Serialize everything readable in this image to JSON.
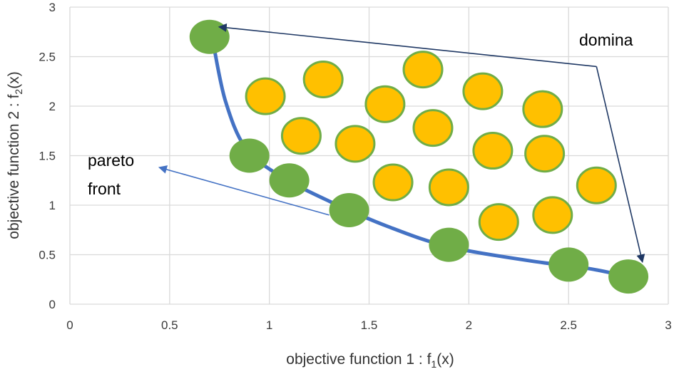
{
  "chart_data": {
    "type": "scatter",
    "title": "",
    "xlabel": "objective function 1 : f",
    "xlabel_sub": "1",
    "xlabel_tail": "(x)",
    "ylabel": "objective function 2 : f",
    "ylabel_sub": "2",
    "ylabel_tail": "(x)",
    "xlim": [
      0,
      3
    ],
    "ylim": [
      0,
      3
    ],
    "grid": true,
    "x_ticks": [
      0,
      0.5,
      1,
      1.5,
      2,
      2.5,
      3
    ],
    "y_ticks": [
      0,
      0.5,
      1,
      1.5,
      2,
      2.5,
      3
    ],
    "x_tick_labels": [
      "0",
      "0.5",
      "1",
      "1.5",
      "2",
      "2.5",
      "3"
    ],
    "y_tick_labels": [
      "0",
      "0.5",
      "1",
      "1.5",
      "2",
      "2.5",
      "3"
    ],
    "series": [
      {
        "role": "pareto",
        "color": "#70ad47",
        "points": [
          {
            "x": 0.7,
            "y": 2.7
          },
          {
            "x": 0.9,
            "y": 1.5
          },
          {
            "x": 1.1,
            "y": 1.25
          },
          {
            "x": 1.4,
            "y": 0.95
          },
          {
            "x": 1.9,
            "y": 0.6
          },
          {
            "x": 2.5,
            "y": 0.4
          },
          {
            "x": 2.8,
            "y": 0.28
          }
        ]
      },
      {
        "role": "dominated",
        "color": "#ffc000",
        "edge_color": "#70ad47",
        "points": [
          {
            "x": 0.98,
            "y": 2.1
          },
          {
            "x": 1.27,
            "y": 2.27
          },
          {
            "x": 1.58,
            "y": 2.02
          },
          {
            "x": 1.77,
            "y": 2.37
          },
          {
            "x": 2.07,
            "y": 2.15
          },
          {
            "x": 2.37,
            "y": 1.97
          },
          {
            "x": 1.16,
            "y": 1.7
          },
          {
            "x": 1.43,
            "y": 1.62
          },
          {
            "x": 1.82,
            "y": 1.78
          },
          {
            "x": 2.12,
            "y": 1.55
          },
          {
            "x": 2.38,
            "y": 1.52
          },
          {
            "x": 1.62,
            "y": 1.23
          },
          {
            "x": 1.9,
            "y": 1.18
          },
          {
            "x": 2.64,
            "y": 1.2
          },
          {
            "x": 2.15,
            "y": 0.83
          },
          {
            "x": 2.42,
            "y": 0.9
          }
        ]
      }
    ],
    "pareto_curve": [
      {
        "x": 0.72,
        "y": 2.62
      },
      {
        "x": 0.78,
        "y": 2.05
      },
      {
        "x": 0.88,
        "y": 1.58
      },
      {
        "x": 1.05,
        "y": 1.3
      },
      {
        "x": 1.3,
        "y": 1.04
      },
      {
        "x": 1.6,
        "y": 0.78
      },
      {
        "x": 1.9,
        "y": 0.58
      },
      {
        "x": 2.3,
        "y": 0.44
      },
      {
        "x": 2.6,
        "y": 0.36
      },
      {
        "x": 2.82,
        "y": 0.27
      }
    ],
    "curve_color": "#4472c4",
    "annotations": {
      "domina": {
        "text": "domina",
        "arrow_path": [
          {
            "x": 2.64,
            "y": 2.4
          },
          {
            "x": 2.87,
            "y": 0.43
          }
        ],
        "arrow_origin": {
          "x": 2.64,
          "y": 2.4
        },
        "arrow_target": {
          "x": 0.75,
          "y": 2.8
        },
        "color": "#1f3864"
      },
      "pareto_front": {
        "line1": "pareto",
        "line2": "front",
        "arrow_from": {
          "x": 1.3,
          "y": 0.9
        },
        "arrow_to": {
          "x": 0.45,
          "y": 1.38
        },
        "color": "#4472c4"
      }
    }
  }
}
